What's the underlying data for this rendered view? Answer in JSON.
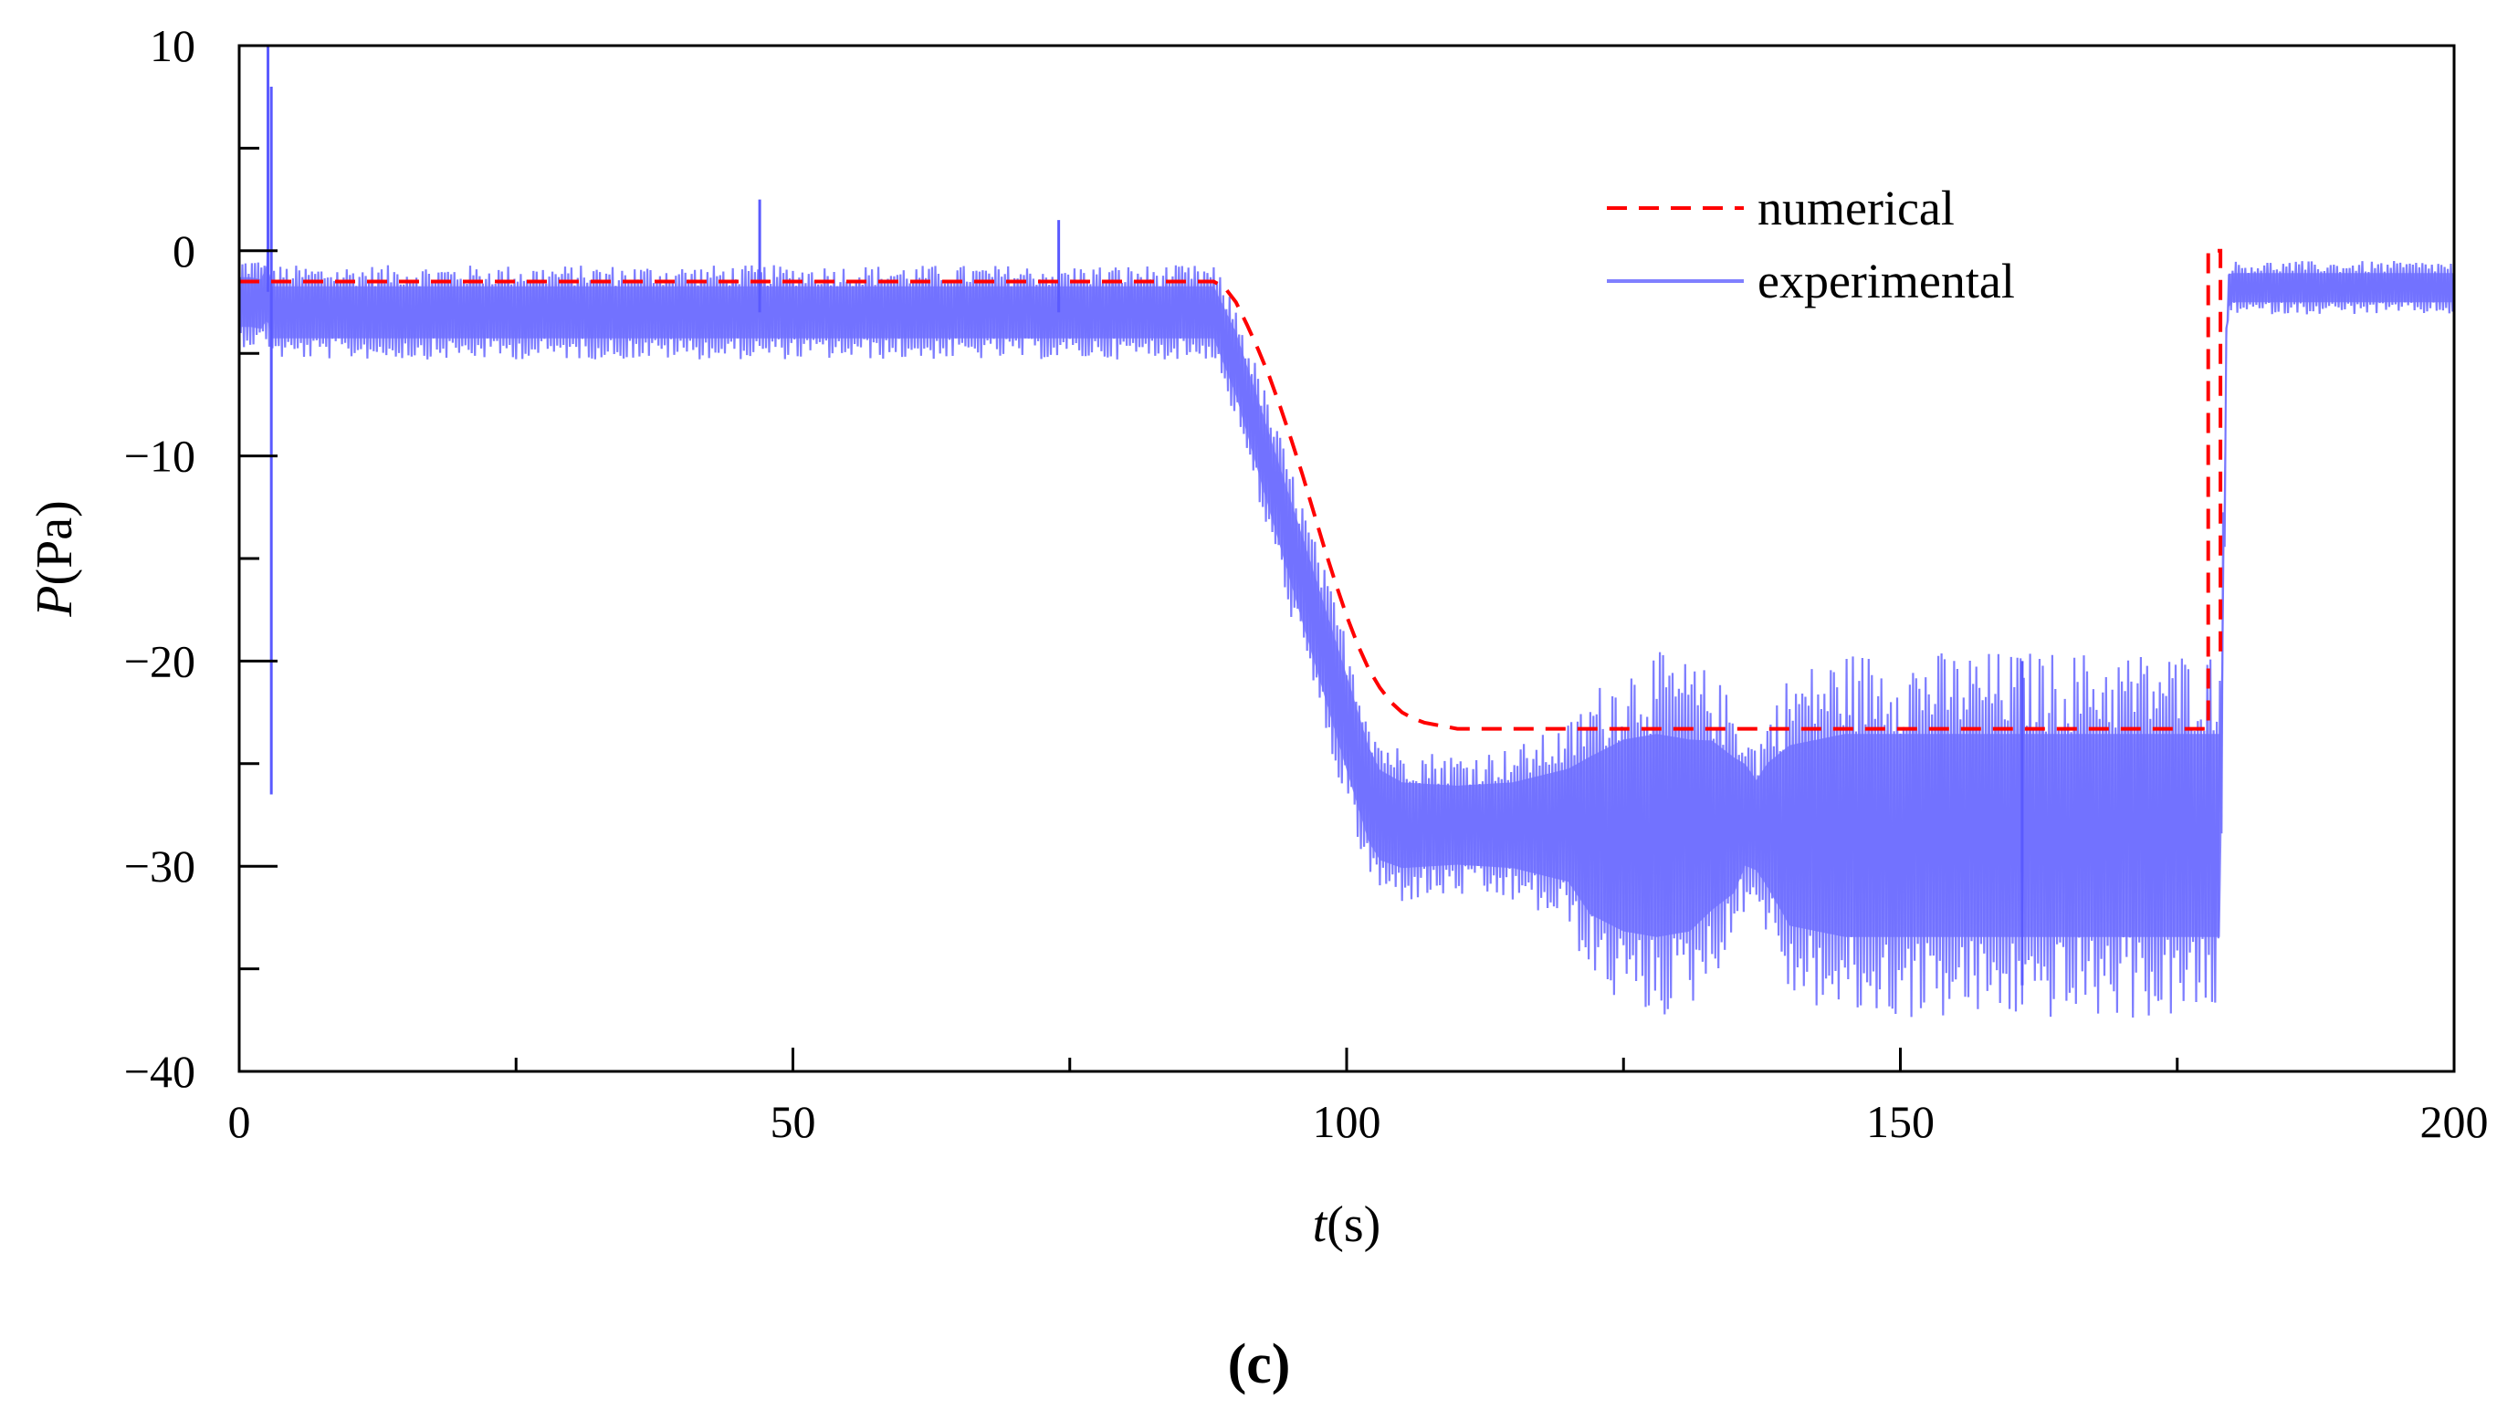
{
  "chart_data": {
    "type": "line",
    "title": "",
    "panel_label": "(c)",
    "xlabel": {
      "var": "t",
      "unit": "(s)"
    },
    "ylabel": {
      "var": "P",
      "unit": "(Pa)"
    },
    "xlim": [
      0,
      200
    ],
    "ylim": [
      -40,
      10
    ],
    "x_major_ticks": [
      0,
      50,
      100,
      150,
      200
    ],
    "x_tick_labels": [
      "0",
      "50",
      "100",
      "150",
      "200"
    ],
    "x_minor_ticks": [
      25,
      75,
      125,
      175
    ],
    "y_major_ticks": [
      10,
      0,
      -10,
      -20,
      -30,
      -40
    ],
    "y_tick_labels": [
      "10",
      "0",
      "−10",
      "−20",
      "−30",
      "−40"
    ],
    "y_minor_ticks": [
      5,
      -5,
      -15,
      -25,
      -35
    ],
    "grid": false,
    "legend_position": "top-right",
    "series": [
      {
        "name": "numerical",
        "style": "dashed",
        "color": "#ff0000",
        "x": [
          0,
          88,
          89,
          90,
          91,
          92,
          93,
          94,
          95,
          96,
          97,
          98,
          99,
          100,
          101,
          102,
          103,
          104,
          105,
          106,
          107,
          108,
          109,
          110,
          112,
          115,
          120,
          177.8,
          177.8,
          178.9,
          178.9
        ],
        "values": [
          -1.5,
          -1.5,
          -1.8,
          -2.5,
          -3.6,
          -4.8,
          -6.1,
          -7.6,
          -9.2,
          -10.9,
          -12.7,
          -14.5,
          -16.2,
          -17.8,
          -19.2,
          -20.4,
          -21.3,
          -22.0,
          -22.5,
          -22.8,
          -23.0,
          -23.1,
          -23.2,
          -23.3,
          -23.3,
          -23.3,
          -23.3,
          -23.3,
          0.0,
          0.0,
          -20.0
        ]
      },
      {
        "name": "experimental",
        "style": "solid",
        "color": "#7878ff",
        "x": [
          0,
          1,
          2,
          2.5,
          3,
          3.5,
          4,
          5,
          46,
          47,
          48,
          73,
          74,
          75,
          88,
          90,
          92,
          94,
          96,
          98,
          100,
          102,
          103,
          105,
          110,
          115,
          120,
          122,
          125,
          128,
          131,
          133,
          135,
          136,
          137,
          138,
          140,
          145,
          150,
          155,
          160,
          161,
          162,
          170,
          175,
          177,
          178.9,
          179.5,
          180,
          185,
          190,
          195,
          200
        ],
        "center": [
          -2.5,
          -2.5,
          -2.6,
          -2.0,
          -3.0,
          -3.0,
          -3.0,
          -3.0,
          -3.0,
          -3.0,
          -3.0,
          -3.0,
          -3.0,
          -3.0,
          -3.0,
          -5.5,
          -9.0,
          -12.5,
          -16.0,
          -19.5,
          -23.0,
          -26.5,
          -27.5,
          -28.0,
          -28.0,
          -28.0,
          -28.0,
          -28.5,
          -28.5,
          -28.5,
          -28.5,
          -28.0,
          -28.0,
          -27.5,
          -28.0,
          -28.0,
          -28.5,
          -28.5,
          -28.5,
          -28.5,
          -28.5,
          -28.5,
          -28.5,
          -28.5,
          -28.5,
          -28.5,
          -28.5,
          -2.0,
          -1.8,
          -1.8,
          -1.8,
          -1.8,
          -1.8
        ],
        "amplitude": [
          2.2,
          2.2,
          2.2,
          2.5,
          2.3,
          2.3,
          2.3,
          2.3,
          2.3,
          2.3,
          2.3,
          2.3,
          2.3,
          2.3,
          2.3,
          2.8,
          3.2,
          3.5,
          3.8,
          4.0,
          4.2,
          4.2,
          4.0,
          3.8,
          3.5,
          3.8,
          5.0,
          7.0,
          8.5,
          9.0,
          8.5,
          7.5,
          6.0,
          4.5,
          4.0,
          5.5,
          8.0,
          9.0,
          9.0,
          9.0,
          9.0,
          9.0,
          9.0,
          9.0,
          9.0,
          9.0,
          9.0,
          1.5,
          1.3,
          1.3,
          1.3,
          1.3,
          1.3
        ],
        "spikes": [
          {
            "x": 2.6,
            "high": 10.0,
            "low": -2.0
          },
          {
            "x": 2.9,
            "high": 8.0,
            "low": -26.5
          },
          {
            "x": 47.0,
            "high": 2.5,
            "low": -3.0
          },
          {
            "x": 74.0,
            "high": 1.5,
            "low": -3.0
          },
          {
            "x": 161.0,
            "high": -20.0,
            "low": -35.8
          }
        ]
      }
    ]
  }
}
